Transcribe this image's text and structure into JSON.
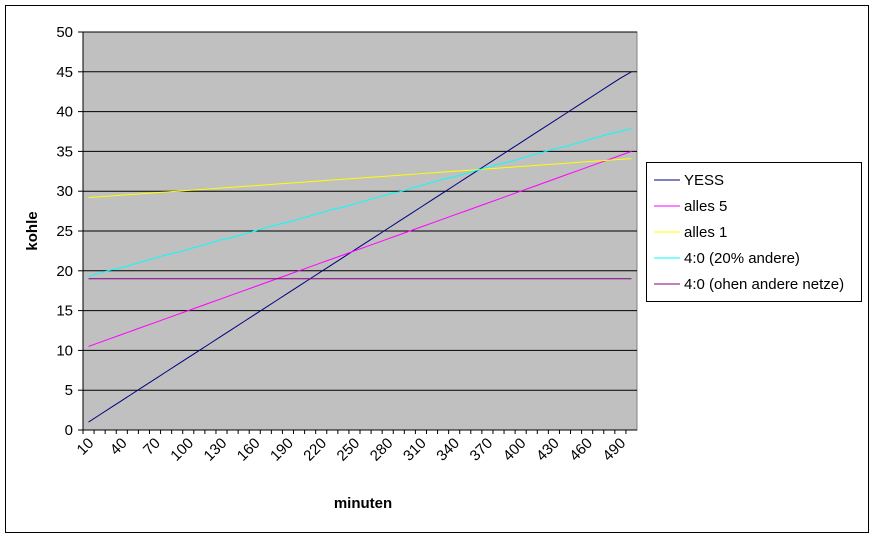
{
  "chart_data": {
    "type": "line",
    "x_label": "minuten",
    "y_label": "kohle",
    "categories": [
      "10",
      null,
      null,
      "40",
      null,
      null,
      "70",
      null,
      null,
      "100",
      null,
      null,
      "130",
      null,
      null,
      "160",
      null,
      null,
      "190",
      null,
      null,
      "220",
      null,
      null,
      "250",
      null,
      null,
      "280",
      null,
      null,
      "310",
      null,
      null,
      "340",
      null,
      null,
      "370",
      null,
      null,
      "400",
      null,
      null,
      "430",
      null,
      null,
      "460",
      null,
      null,
      "490",
      null
    ],
    "series": [
      {
        "name": "YESS",
        "color": "#000080",
        "values": [
          1,
          1.9,
          2.8,
          3.7,
          4.6,
          5.5,
          6.4,
          7.3,
          8.2,
          9.1,
          10,
          10.9,
          11.8,
          12.7,
          13.6,
          14.5,
          15.4,
          16.3,
          17.2,
          18.1,
          19,
          19.9,
          20.8,
          21.7,
          22.6,
          23.5,
          24.4,
          25.3,
          26.2,
          27.1,
          28,
          28.9,
          29.8,
          30.7,
          31.6,
          32.5,
          33.4,
          34.3,
          35.2,
          36.1,
          37,
          37.9,
          38.8,
          39.7,
          40.6,
          41.5,
          42.4,
          43.3,
          44.2,
          45
        ]
      },
      {
        "name": "alles 5",
        "color": "#ff00ff",
        "values": [
          10.5,
          11,
          11.5,
          12,
          12.5,
          13,
          13.5,
          14,
          14.5,
          15,
          15.5,
          16,
          16.5,
          17,
          17.5,
          18,
          18.5,
          19,
          19.5,
          20,
          20.5,
          21,
          21.5,
          22,
          22.5,
          23,
          23.5,
          24,
          24.5,
          25,
          25.5,
          26,
          26.5,
          27,
          27.5,
          28,
          28.5,
          29,
          29.5,
          30,
          30.5,
          31,
          31.5,
          32,
          32.5,
          33,
          33.5,
          34,
          34.5,
          35
        ]
      },
      {
        "name": "alles 1",
        "color": "#ffff00",
        "values": [
          29.2,
          29.3,
          29.4,
          29.5,
          29.6,
          29.7,
          29.8,
          29.9,
          30,
          30.1,
          30.2,
          30.3,
          30.4,
          30.5,
          30.6,
          30.7,
          30.8,
          30.9,
          31,
          31.1,
          31.2,
          31.3,
          31.4,
          31.5,
          31.6,
          31.7,
          31.8,
          31.9,
          32,
          32.1,
          32.2,
          32.3,
          32.4,
          32.5,
          32.6,
          32.7,
          32.8,
          32.9,
          33,
          33.1,
          33.2,
          33.3,
          33.4,
          33.5,
          33.6,
          33.7,
          33.8,
          33.9,
          34,
          34.1
        ]
      },
      {
        "name": "4:0 (20% andere)",
        "color": "#00ffff",
        "values": [
          19.3,
          19.7,
          20.1,
          20.4,
          20.8,
          21.2,
          21.6,
          22,
          22.3,
          22.7,
          23.1,
          23.5,
          23.9,
          24.2,
          24.6,
          25,
          25.4,
          25.8,
          26.1,
          26.5,
          26.9,
          27.3,
          27.7,
          28,
          28.4,
          28.8,
          29.2,
          29.6,
          29.9,
          30.3,
          30.7,
          31.1,
          31.5,
          31.8,
          32.2,
          32.6,
          33,
          33.4,
          33.7,
          34.1,
          34.5,
          34.9,
          35.3,
          35.6,
          36,
          36.4,
          36.8,
          37.2,
          37.5,
          37.9
        ]
      },
      {
        "name": "4:0 (ohen andere netze)",
        "color": "#800080",
        "values": [
          19,
          19,
          19,
          19,
          19,
          19,
          19,
          19,
          19,
          19,
          19,
          19,
          19,
          19,
          19,
          19,
          19,
          19,
          19,
          19,
          19,
          19,
          19,
          19,
          19,
          19,
          19,
          19,
          19,
          19,
          19,
          19,
          19,
          19,
          19,
          19,
          19,
          19,
          19,
          19,
          19,
          19,
          19,
          19,
          19,
          19,
          19,
          19,
          19,
          19
        ]
      }
    ],
    "ylim": [
      0,
      50
    ],
    "yticks": [
      0,
      5,
      10,
      15,
      20,
      25,
      30,
      35,
      40,
      45,
      50
    ],
    "grid": true,
    "legend": "right"
  }
}
